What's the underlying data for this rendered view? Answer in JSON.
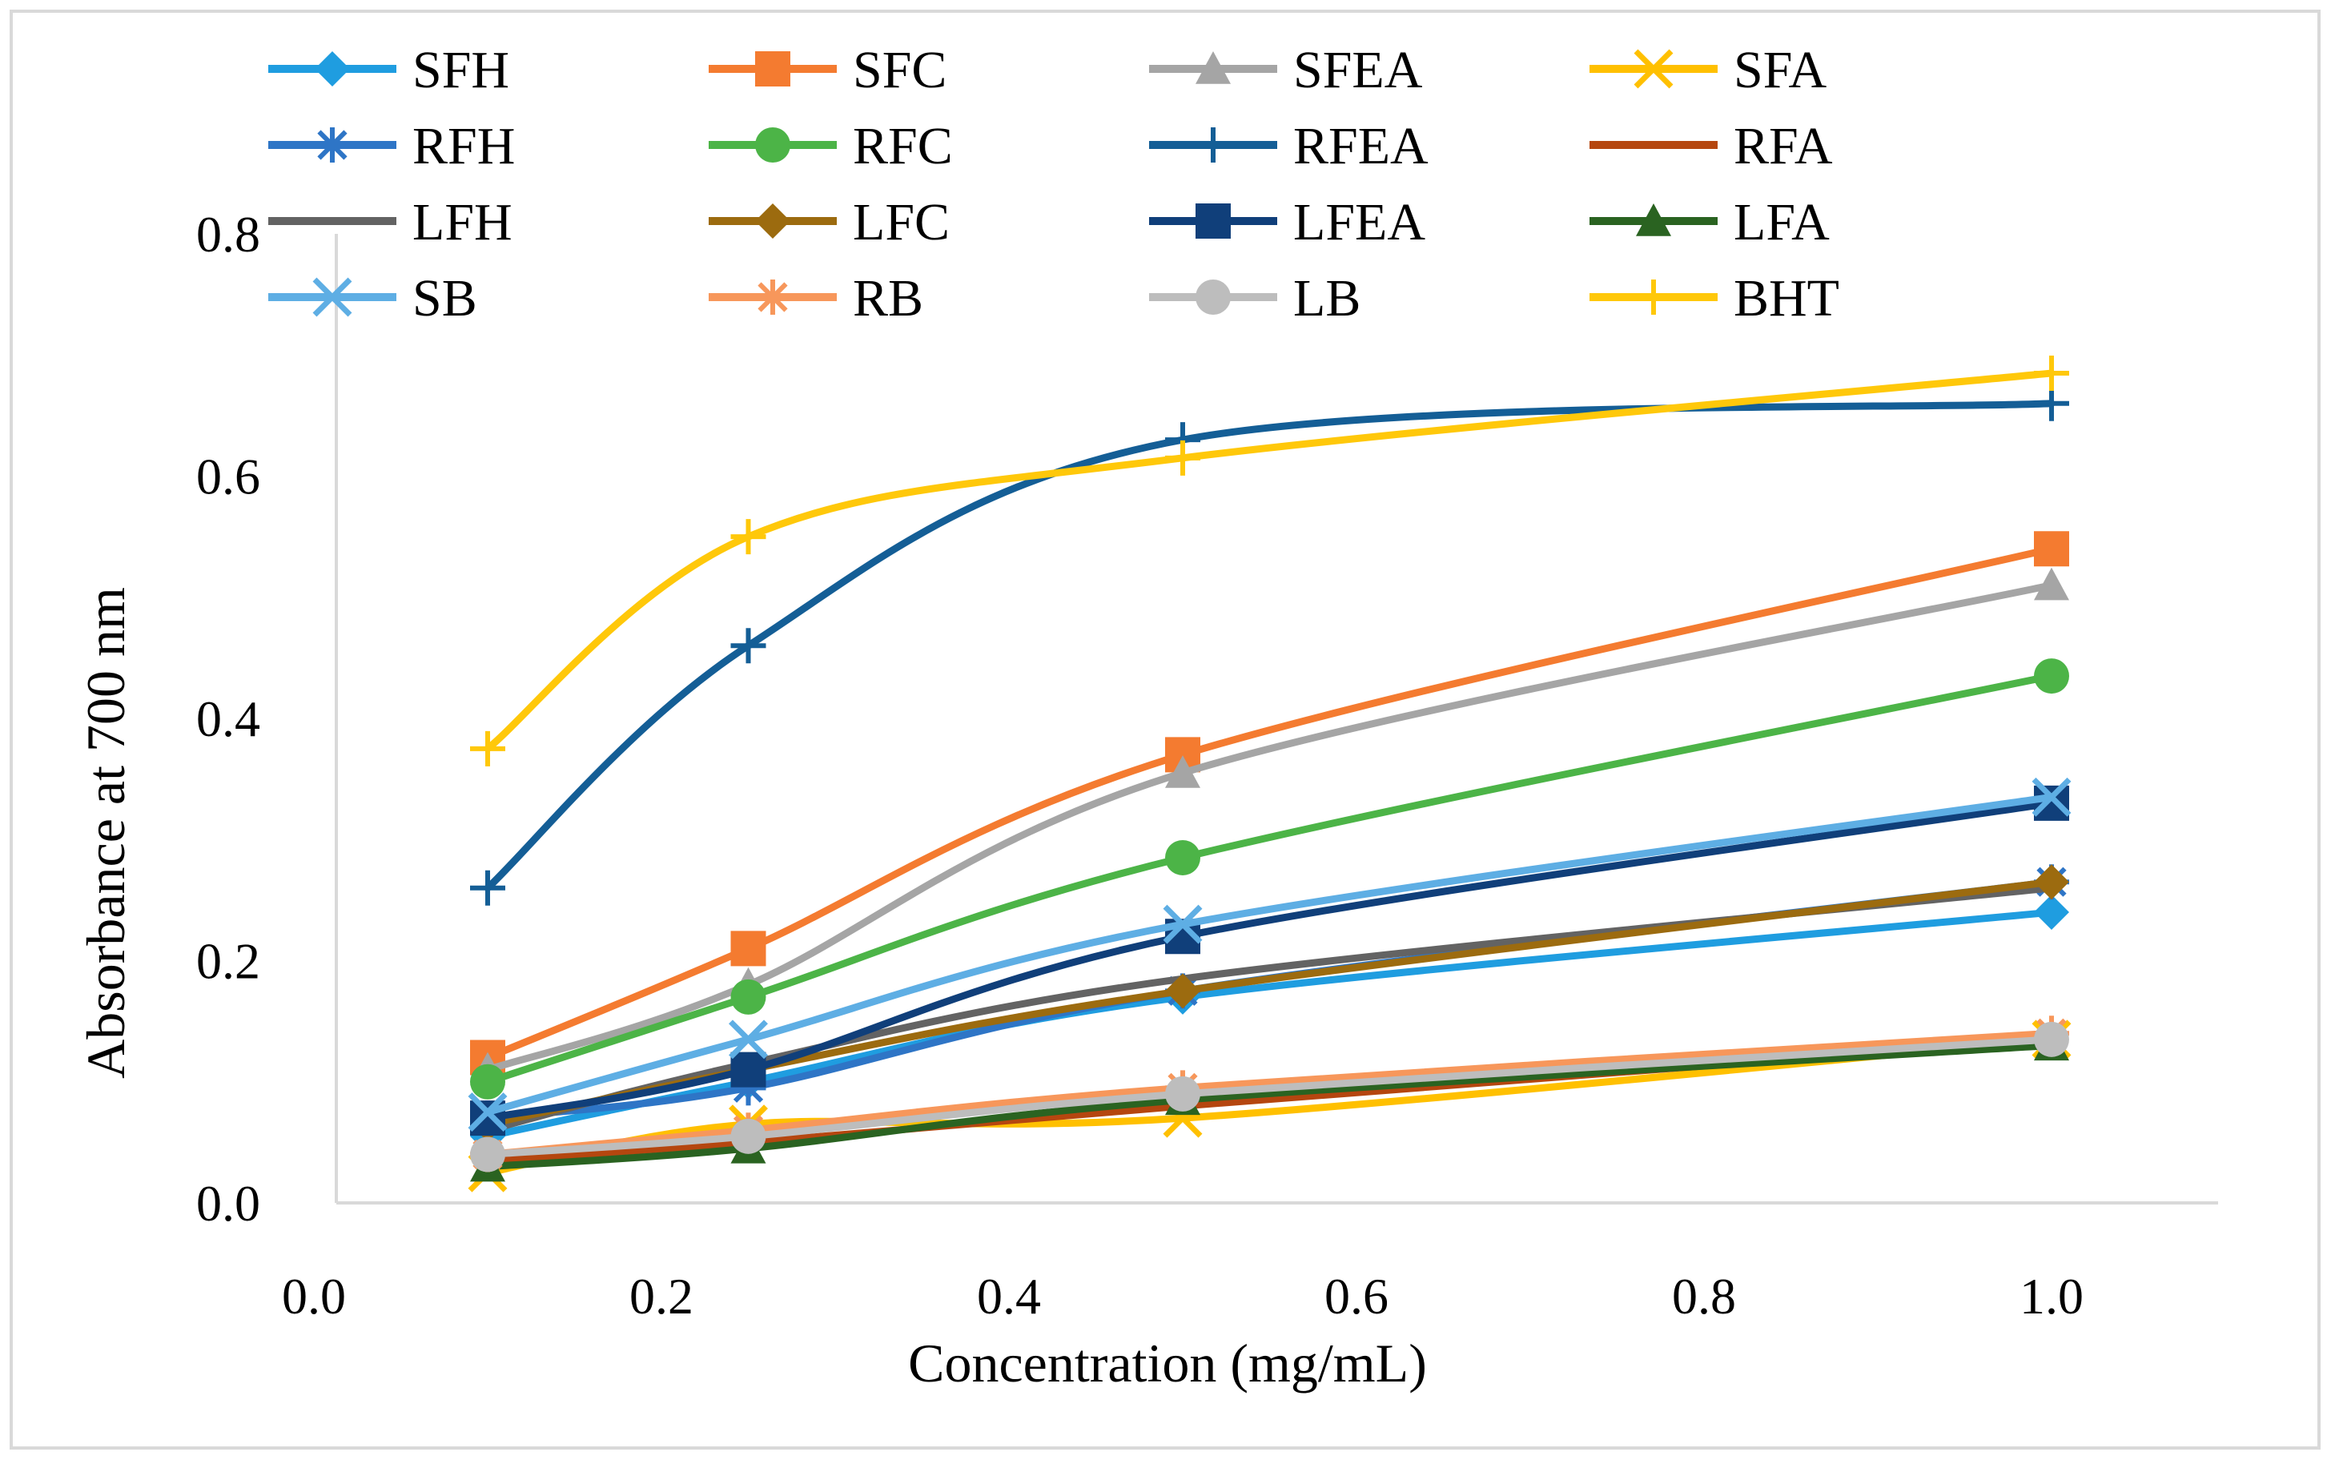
{
  "chart_data": {
    "type": "line",
    "title": "",
    "xlabel": "Concentration (mg/mL)",
    "ylabel": "Absorbance at 700 nm",
    "xlim": [
      0.0,
      1.1
    ],
    "ylim": [
      0.0,
      0.8
    ],
    "x_ticks": [
      "0.0",
      "0.2",
      "0.4",
      "0.6",
      "0.8",
      "1.0"
    ],
    "y_ticks": [
      "0.0",
      "0.2",
      "0.4",
      "0.6",
      "0.8"
    ],
    "grid": false,
    "legend_position": "top",
    "x": [
      0.1,
      0.25,
      0.5,
      1.0
    ],
    "series": [
      {
        "name": "SFH",
        "color": "#1f9de0",
        "marker": "diamond",
        "values": [
          0.055,
          0.1,
          0.17,
          0.24
        ]
      },
      {
        "name": "SFC",
        "color": "#f47b30",
        "marker": "square",
        "values": [
          0.12,
          0.21,
          0.37,
          0.54
        ]
      },
      {
        "name": "SFEA",
        "color": "#a5a5a5",
        "marker": "triangle",
        "values": [
          0.11,
          0.18,
          0.355,
          0.51
        ]
      },
      {
        "name": "SFA",
        "color": "#ffc000",
        "marker": "x",
        "values": [
          0.025,
          0.065,
          0.07,
          0.135
        ]
      },
      {
        "name": "RFH",
        "color": "#2e75c6",
        "marker": "star",
        "values": [
          0.07,
          0.095,
          0.175,
          0.265
        ]
      },
      {
        "name": "RFC",
        "color": "#4cb447",
        "marker": "circle",
        "values": [
          0.1,
          0.17,
          0.285,
          0.435
        ]
      },
      {
        "name": "RFEA",
        "color": "#145e96",
        "marker": "plus",
        "values": [
          0.26,
          0.46,
          0.63,
          0.66
        ]
      },
      {
        "name": "RFA",
        "color": "#b5460f",
        "marker": "none",
        "values": [
          0.035,
          0.05,
          0.08,
          0.135
        ]
      },
      {
        "name": "LFH",
        "color": "#636363",
        "marker": "none",
        "values": [
          0.06,
          0.115,
          0.185,
          0.26
        ]
      },
      {
        "name": "LFC",
        "color": "#9c6b0f",
        "marker": "diamond",
        "values": [
          0.065,
          0.11,
          0.175,
          0.265
        ]
      },
      {
        "name": "LFEA",
        "color": "#103f7a",
        "marker": "square",
        "values": [
          0.07,
          0.11,
          0.22,
          0.33
        ]
      },
      {
        "name": "LFA",
        "color": "#2a6321",
        "marker": "triangle",
        "values": [
          0.03,
          0.045,
          0.085,
          0.13
        ]
      },
      {
        "name": "SB",
        "color": "#5eaee4",
        "marker": "x",
        "values": [
          0.075,
          0.135,
          0.23,
          0.335
        ]
      },
      {
        "name": "RB",
        "color": "#f7975b",
        "marker": "star",
        "values": [
          0.04,
          0.06,
          0.095,
          0.14
        ]
      },
      {
        "name": "LB",
        "color": "#bdbdbd",
        "marker": "circle",
        "values": [
          0.04,
          0.055,
          0.09,
          0.135
        ]
      },
      {
        "name": "BHT",
        "color": "#ffc80a",
        "marker": "plus",
        "values": [
          0.375,
          0.55,
          0.615,
          0.685
        ]
      }
    ]
  }
}
